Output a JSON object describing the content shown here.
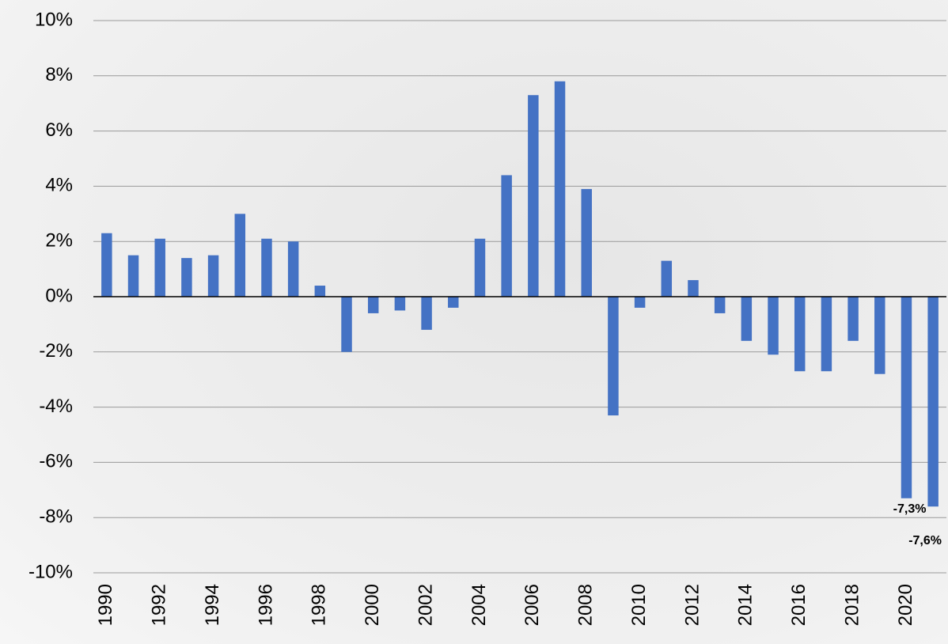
{
  "chart_data": {
    "type": "bar",
    "categories": [
      "1990",
      null,
      "1992",
      null,
      "1994",
      null,
      "1996",
      null,
      "1998",
      null,
      "2000",
      null,
      "2002",
      null,
      "2004",
      null,
      "2006",
      null,
      "2008",
      null,
      "2010",
      null,
      "2012",
      null,
      "2014",
      null,
      "2016",
      null,
      "2018",
      null,
      "2020",
      null
    ],
    "values": [
      2.3,
      1.5,
      2.1,
      1.4,
      1.5,
      3.0,
      2.1,
      2.0,
      0.4,
      -2.0,
      -0.6,
      -0.5,
      -1.2,
      -0.4,
      2.1,
      4.4,
      7.3,
      7.8,
      3.9,
      -4.3,
      -0.4,
      1.3,
      0.6,
      -0.6,
      -1.6,
      -2.1,
      -2.7,
      -2.7,
      -1.6,
      -2.8,
      -7.3,
      -7.6
    ],
    "value_labels": [
      null,
      null,
      null,
      null,
      null,
      null,
      null,
      null,
      null,
      null,
      null,
      null,
      null,
      null,
      null,
      null,
      null,
      null,
      null,
      null,
      null,
      null,
      null,
      null,
      null,
      null,
      null,
      null,
      null,
      null,
      "-7,3%",
      "-7,6%"
    ],
    "color": "#4472c4",
    "ylim": [
      -10,
      10
    ],
    "yticks": [
      {
        "value": -10,
        "label": "-10%"
      },
      {
        "value": -8,
        "label": "-8%"
      },
      {
        "value": -6,
        "label": "-6%"
      },
      {
        "value": -4,
        "label": "-4%"
      },
      {
        "value": -2,
        "label": "-2%"
      },
      {
        "value": 0,
        "label": "0%"
      },
      {
        "value": 2,
        "label": "2%"
      },
      {
        "value": 4,
        "label": "4%"
      },
      {
        "value": 6,
        "label": "6%"
      },
      {
        "value": 8,
        "label": "8%"
      },
      {
        "value": 10,
        "label": "10%"
      }
    ],
    "grid": true
  }
}
